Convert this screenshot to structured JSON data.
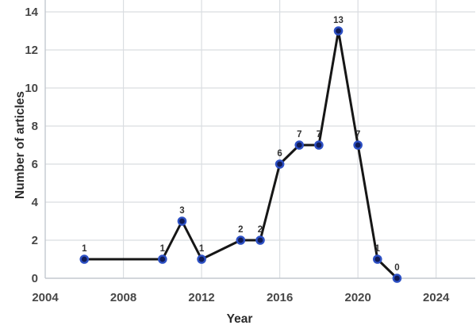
{
  "chart_data": {
    "type": "line",
    "title": "",
    "xlabel": "Year",
    "ylabel": "Number of articles",
    "x": [
      2006,
      2010,
      2011,
      2012,
      2014,
      2015,
      2016,
      2017,
      2018,
      2019,
      2020,
      2021,
      2022
    ],
    "values": [
      1,
      1,
      3,
      1,
      2,
      2,
      6,
      7,
      7,
      13,
      7,
      1,
      0
    ],
    "point_labels": [
      "1",
      "1",
      "3",
      "1",
      "2",
      "2",
      "6",
      "7",
      "7",
      "13",
      "7",
      "1",
      "0"
    ],
    "x_ticks": [
      2004,
      2008,
      2012,
      2016,
      2020,
      2024
    ],
    "y_ticks": [
      0,
      2,
      4,
      6,
      8,
      10,
      12,
      14
    ],
    "xlim": [
      2004,
      2026
    ],
    "ylim": [
      0,
      14.6
    ],
    "grid": true,
    "legend": false,
    "colors": {
      "background": "#ffffff",
      "line": "#161616",
      "marker_fill": "#101b55",
      "marker_stroke": "#2d50c4",
      "gridline": "#dadde1",
      "axis_line": "#c3c9cf",
      "tick_label": "#474747",
      "axis_title": "#2b2b2b",
      "data_label": "#333333"
    }
  }
}
